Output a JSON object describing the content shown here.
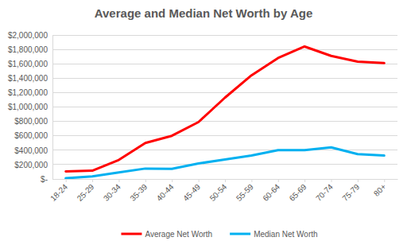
{
  "chart_data": {
    "type": "line",
    "title": "Average and Median Net Worth by Age",
    "categories": [
      "18-24",
      "25-29",
      "30-34",
      "35-39",
      "40-44",
      "45-49",
      "50-54",
      "55-59",
      "60-64",
      "65-69",
      "70-74",
      "75-79",
      "80+"
    ],
    "series": [
      {
        "name": "Average Net Worth",
        "color": "#ff0000",
        "values": [
          105000,
          115000,
          265000,
          500000,
          600000,
          790000,
          1130000,
          1440000,
          1680000,
          1840000,
          1710000,
          1630000,
          1610000
        ]
      },
      {
        "name": "Median Net Worth",
        "color": "#00b0f0",
        "values": [
          10000,
          35000,
          90000,
          145000,
          140000,
          215000,
          270000,
          325000,
          400000,
          400000,
          440000,
          345000,
          325000
        ]
      }
    ],
    "ylim": [
      0,
      2000000
    ],
    "yticks": [
      {
        "value": 0,
        "label": "$-"
      },
      {
        "value": 200000,
        "label": "$200,000"
      },
      {
        "value": 400000,
        "label": "$400,000"
      },
      {
        "value": 600000,
        "label": "$600,000"
      },
      {
        "value": 800000,
        "label": "$800,000"
      },
      {
        "value": 1000000,
        "label": "$1,000,000"
      },
      {
        "value": 1200000,
        "label": "$1,200,000"
      },
      {
        "value": 1400000,
        "label": "$1,400,000"
      },
      {
        "value": 1600000,
        "label": "$1,600,000"
      },
      {
        "value": 1800000,
        "label": "$1,800,000"
      },
      {
        "value": 2000000,
        "label": "$2,000,000"
      }
    ],
    "grid": true,
    "legend": "bottom"
  }
}
